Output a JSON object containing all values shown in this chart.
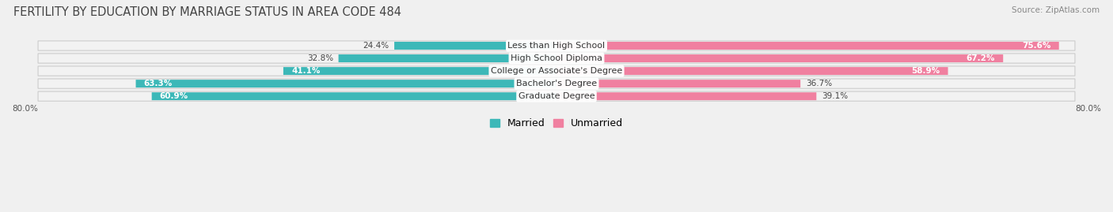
{
  "title": "FERTILITY BY EDUCATION BY MARRIAGE STATUS IN AREA CODE 484",
  "source": "Source: ZipAtlas.com",
  "categories": [
    "Less than High School",
    "High School Diploma",
    "College or Associate's Degree",
    "Bachelor's Degree",
    "Graduate Degree"
  ],
  "married": [
    24.4,
    32.8,
    41.1,
    63.3,
    60.9
  ],
  "unmarried": [
    75.6,
    67.2,
    58.9,
    36.7,
    39.1
  ],
  "married_color": "#3cb8b8",
  "unmarried_color": "#f080a0",
  "axis_min": -80.0,
  "axis_max": 80.0,
  "title_fontsize": 10.5,
  "label_fontsize": 8.0,
  "bar_label_fontsize": 7.5,
  "legend_fontsize": 9,
  "source_fontsize": 7.5,
  "fig_width": 14.06,
  "fig_height": 2.69,
  "dpi": 100
}
